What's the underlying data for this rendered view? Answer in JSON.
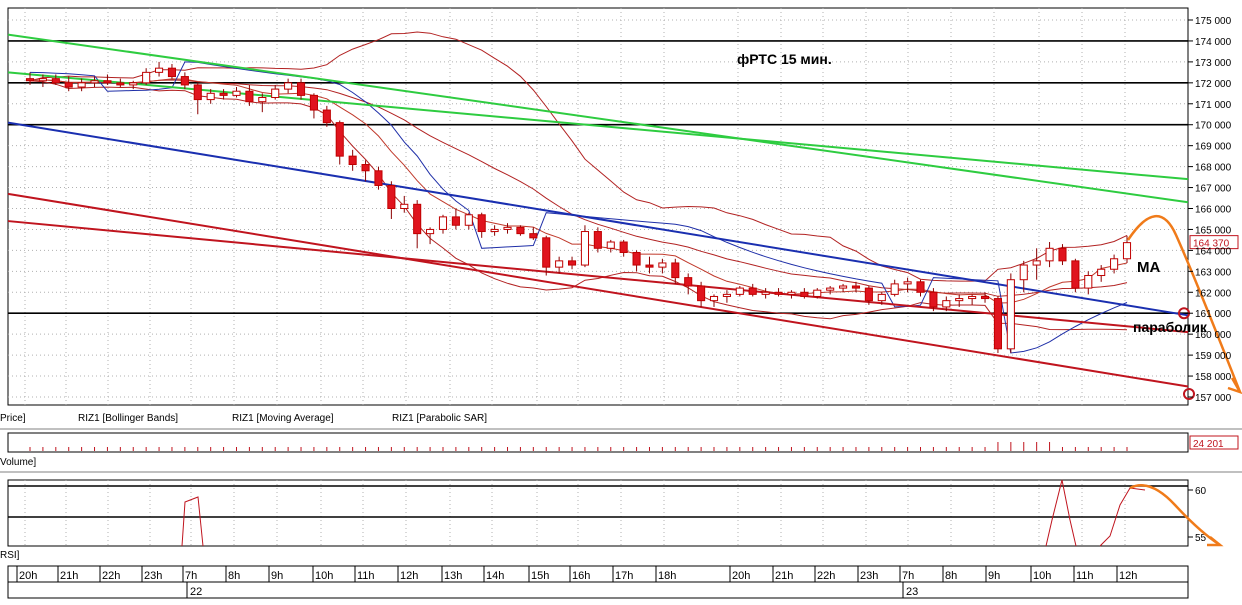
{
  "chart_data": {
    "type": "candlestick",
    "title": "фРТС   15 мин.",
    "annotations": [
      "MA",
      "параболик"
    ],
    "price_panel": {
      "label": "Price]",
      "legend": [
        "RIZ1 [Bollinger Bands]",
        "RIZ1 [Moving Average]",
        "RIZ1 [Parabolic SAR]"
      ],
      "y_ticks": [
        "175 000",
        "174 000",
        "173 000",
        "172 000",
        "171 000",
        "170 000",
        "169 000",
        "168 000",
        "167 000",
        "166 000",
        "165 000",
        "164 000",
        "163 000",
        "162 000",
        "161 000",
        "160 000",
        "159 000",
        "158 000",
        "157 000"
      ],
      "ylim": [
        157000,
        175500
      ],
      "last_price_label": "164 370",
      "horizontal_levels": [
        174000,
        172000,
        170000,
        161000
      ],
      "candles": [
        {
          "o": 172200,
          "h": 172500,
          "l": 171900,
          "c": 172100
        },
        {
          "o": 172100,
          "h": 172400,
          "l": 171800,
          "c": 172200
        },
        {
          "o": 172200,
          "h": 172400,
          "l": 171900,
          "c": 172000
        },
        {
          "o": 172000,
          "h": 172300,
          "l": 171600,
          "c": 171800
        },
        {
          "o": 171800,
          "h": 172200,
          "l": 171600,
          "c": 172000
        },
        {
          "o": 172000,
          "h": 172300,
          "l": 171800,
          "c": 172100
        },
        {
          "o": 172100,
          "h": 172400,
          "l": 171900,
          "c": 172000
        },
        {
          "o": 172000,
          "h": 172200,
          "l": 171800,
          "c": 171900
        },
        {
          "o": 171900,
          "h": 172100,
          "l": 171700,
          "c": 172000
        },
        {
          "o": 172000,
          "h": 172700,
          "l": 171900,
          "c": 172500
        },
        {
          "o": 172500,
          "h": 173000,
          "l": 172300,
          "c": 172700
        },
        {
          "o": 172700,
          "h": 172900,
          "l": 172200,
          "c": 172300
        },
        {
          "o": 172300,
          "h": 172500,
          "l": 171700,
          "c": 171900
        },
        {
          "o": 171900,
          "h": 172000,
          "l": 170500,
          "c": 171200
        },
        {
          "o": 171200,
          "h": 171700,
          "l": 171000,
          "c": 171500
        },
        {
          "o": 171500,
          "h": 171700,
          "l": 171200,
          "c": 171400
        },
        {
          "o": 171400,
          "h": 171800,
          "l": 171300,
          "c": 171600
        },
        {
          "o": 171600,
          "h": 171900,
          "l": 170900,
          "c": 171100
        },
        {
          "o": 171100,
          "h": 171500,
          "l": 170600,
          "c": 171300
        },
        {
          "o": 171300,
          "h": 171900,
          "l": 171200,
          "c": 171700
        },
        {
          "o": 171700,
          "h": 172200,
          "l": 171500,
          "c": 172000
        },
        {
          "o": 172000,
          "h": 172200,
          "l": 171200,
          "c": 171400
        },
        {
          "o": 171400,
          "h": 171500,
          "l": 170300,
          "c": 170700
        },
        {
          "o": 170700,
          "h": 170900,
          "l": 169900,
          "c": 170100
        },
        {
          "o": 170100,
          "h": 170200,
          "l": 168100,
          "c": 168500
        },
        {
          "o": 168500,
          "h": 168800,
          "l": 167800,
          "c": 168100
        },
        {
          "o": 168100,
          "h": 168300,
          "l": 167300,
          "c": 167800
        },
        {
          "o": 167800,
          "h": 168000,
          "l": 166900,
          "c": 167100
        },
        {
          "o": 167100,
          "h": 167300,
          "l": 165500,
          "c": 166000
        },
        {
          "o": 166000,
          "h": 166600,
          "l": 165800,
          "c": 166200
        },
        {
          "o": 166200,
          "h": 166400,
          "l": 164100,
          "c": 164800
        },
        {
          "o": 164800,
          "h": 165100,
          "l": 164300,
          "c": 165000
        },
        {
          "o": 165000,
          "h": 165700,
          "l": 164800,
          "c": 165600
        },
        {
          "o": 165600,
          "h": 166000,
          "l": 165000,
          "c": 165200
        },
        {
          "o": 165200,
          "h": 165800,
          "l": 165000,
          "c": 165700
        },
        {
          "o": 165700,
          "h": 165800,
          "l": 164600,
          "c": 164900
        },
        {
          "o": 164900,
          "h": 165200,
          "l": 164700,
          "c": 165000
        },
        {
          "o": 165000,
          "h": 165300,
          "l": 164800,
          "c": 165100
        },
        {
          "o": 165100,
          "h": 165200,
          "l": 164700,
          "c": 164800
        },
        {
          "o": 164800,
          "h": 165100,
          "l": 164500,
          "c": 164600
        },
        {
          "o": 164600,
          "h": 164700,
          "l": 162800,
          "c": 163200
        },
        {
          "o": 163200,
          "h": 163700,
          "l": 162900,
          "c": 163500
        },
        {
          "o": 163500,
          "h": 163700,
          "l": 163100,
          "c": 163300
        },
        {
          "o": 163300,
          "h": 165200,
          "l": 163200,
          "c": 164900
        },
        {
          "o": 164900,
          "h": 165100,
          "l": 163900,
          "c": 164100
        },
        {
          "o": 164100,
          "h": 164500,
          "l": 163900,
          "c": 164400
        },
        {
          "o": 164400,
          "h": 164500,
          "l": 163700,
          "c": 163900
        },
        {
          "o": 163900,
          "h": 164000,
          "l": 163000,
          "c": 163300
        },
        {
          "o": 163300,
          "h": 163700,
          "l": 162900,
          "c": 163200
        },
        {
          "o": 163200,
          "h": 163600,
          "l": 162900,
          "c": 163400
        },
        {
          "o": 163400,
          "h": 163600,
          "l": 162400,
          "c": 162700
        },
        {
          "o": 162700,
          "h": 162900,
          "l": 161900,
          "c": 162300
        },
        {
          "o": 162300,
          "h": 162500,
          "l": 161300,
          "c": 161600
        },
        {
          "o": 161600,
          "h": 161900,
          "l": 161300,
          "c": 161800
        },
        {
          "o": 161800,
          "h": 162100,
          "l": 161500,
          "c": 161900
        },
        {
          "o": 161900,
          "h": 162300,
          "l": 161800,
          "c": 162200
        },
        {
          "o": 162200,
          "h": 162400,
          "l": 161800,
          "c": 161900
        },
        {
          "o": 161900,
          "h": 162200,
          "l": 161700,
          "c": 162000
        },
        {
          "o": 162000,
          "h": 162200,
          "l": 161800,
          "c": 161900
        },
        {
          "o": 161900,
          "h": 162100,
          "l": 161700,
          "c": 162000
        },
        {
          "o": 162000,
          "h": 162200,
          "l": 161700,
          "c": 161800
        },
        {
          "o": 161800,
          "h": 162200,
          "l": 161700,
          "c": 162100
        },
        {
          "o": 162100,
          "h": 162300,
          "l": 161900,
          "c": 162200
        },
        {
          "o": 162200,
          "h": 162400,
          "l": 162000,
          "c": 162300
        },
        {
          "o": 162300,
          "h": 162500,
          "l": 162000,
          "c": 162200
        },
        {
          "o": 162200,
          "h": 162300,
          "l": 161400,
          "c": 161600
        },
        {
          "o": 161600,
          "h": 162000,
          "l": 161400,
          "c": 161900
        },
        {
          "o": 161900,
          "h": 162600,
          "l": 161800,
          "c": 162400
        },
        {
          "o": 162400,
          "h": 162700,
          "l": 162000,
          "c": 162500
        },
        {
          "o": 162500,
          "h": 162600,
          "l": 161800,
          "c": 162000
        },
        {
          "o": 162000,
          "h": 162200,
          "l": 161100,
          "c": 161300
        },
        {
          "o": 161300,
          "h": 161800,
          "l": 161100,
          "c": 161600
        },
        {
          "o": 161600,
          "h": 161900,
          "l": 161300,
          "c": 161700
        },
        {
          "o": 161700,
          "h": 161900,
          "l": 161400,
          "c": 161800
        },
        {
          "o": 161800,
          "h": 162000,
          "l": 161500,
          "c": 161700
        },
        {
          "o": 161700,
          "h": 161800,
          "l": 159100,
          "c": 159300
        },
        {
          "o": 159300,
          "h": 162900,
          "l": 159100,
          "c": 162600
        },
        {
          "o": 162600,
          "h": 163500,
          "l": 162000,
          "c": 163300
        },
        {
          "o": 163300,
          "h": 164100,
          "l": 162600,
          "c": 163500
        },
        {
          "o": 163500,
          "h": 164400,
          "l": 163200,
          "c": 164100
        },
        {
          "o": 164100,
          "h": 164300,
          "l": 163300,
          "c": 163500
        },
        {
          "o": 163500,
          "h": 163600,
          "l": 162000,
          "c": 162200
        },
        {
          "o": 162200,
          "h": 163000,
          "l": 161900,
          "c": 162800
        },
        {
          "o": 162800,
          "h": 163300,
          "l": 162500,
          "c": 163100
        },
        {
          "o": 163100,
          "h": 163800,
          "l": 162900,
          "c": 163600
        },
        {
          "o": 163600,
          "h": 164700,
          "l": 163400,
          "c": 164370
        }
      ]
    },
    "volume_panel": {
      "label": "Volume]",
      "last_value": "24 201"
    },
    "rsi_panel": {
      "label": "RSI]",
      "y_ticks": [
        "60",
        "55"
      ],
      "levels": [
        60,
        55
      ]
    },
    "time_axis": {
      "hour_labels": [
        "20h",
        "21h",
        "22h",
        "23h",
        "7h",
        "8h",
        "9h",
        "10h",
        "11h",
        "12h",
        "13h",
        "14h",
        "15h",
        "16h",
        "17h",
        "18h",
        "20h",
        "21h",
        "22h",
        "23h",
        "7h",
        "8h",
        "9h",
        "10h",
        "11h",
        "12h"
      ],
      "date_labels": [
        "22",
        "23"
      ]
    }
  }
}
